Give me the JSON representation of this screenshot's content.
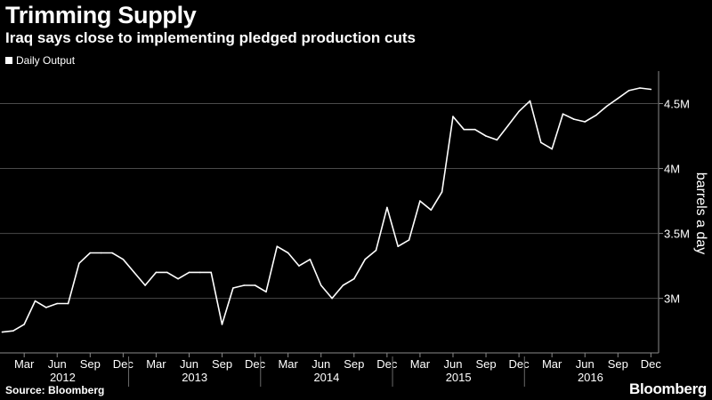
{
  "header": {
    "title": "Trimming Supply",
    "subtitle": "Iraq says close to implementing pledged production cuts"
  },
  "footer": {
    "source": "Source: Bloomberg",
    "brand": "Bloomberg"
  },
  "colors": {
    "background": "#000000",
    "line": "#ffffff",
    "grid": "#4a4a4a"
  },
  "chart_data": {
    "type": "line",
    "title": "Trimming Supply",
    "subtitle": "Iraq says close to implementing pledged production cuts",
    "ylabel": "barrels a day",
    "xlabel": "",
    "legend": {
      "placement": "top-left",
      "entries": [
        "Daily Output"
      ]
    },
    "grid": true,
    "ylim": [
      2.58,
      4.75
    ],
    "yticks": [
      {
        "value": 3.0,
        "label": "3M"
      },
      {
        "value": 3.5,
        "label": "3.5M"
      },
      {
        "value": 4.0,
        "label": "4M"
      },
      {
        "value": 4.5,
        "label": "4.5M"
      }
    ],
    "xlim": [
      "2012-01",
      "2016-12"
    ],
    "xticks": [
      {
        "date": "2012-03",
        "label": "Mar"
      },
      {
        "date": "2012-06",
        "label": "Jun"
      },
      {
        "date": "2012-09",
        "label": "Sep"
      },
      {
        "date": "2012-12",
        "label": "Dec"
      },
      {
        "date": "2013-03",
        "label": "Mar"
      },
      {
        "date": "2013-06",
        "label": "Jun"
      },
      {
        "date": "2013-09",
        "label": "Sep"
      },
      {
        "date": "2013-12",
        "label": "Dec"
      },
      {
        "date": "2014-03",
        "label": "Mar"
      },
      {
        "date": "2014-06",
        "label": "Jun"
      },
      {
        "date": "2014-09",
        "label": "Sep"
      },
      {
        "date": "2014-12",
        "label": "Dec"
      },
      {
        "date": "2015-03",
        "label": "Mar"
      },
      {
        "date": "2015-06",
        "label": "Jun"
      },
      {
        "date": "2015-09",
        "label": "Sep"
      },
      {
        "date": "2015-12",
        "label": "Dec"
      },
      {
        "date": "2016-03",
        "label": "Mar"
      },
      {
        "date": "2016-06",
        "label": "Jun"
      },
      {
        "date": "2016-09",
        "label": "Sep"
      },
      {
        "date": "2016-12",
        "label": "Dec"
      }
    ],
    "year_labels": [
      "2012",
      "2013",
      "2014",
      "2015",
      "2016"
    ],
    "series": [
      {
        "name": "Daily Output",
        "x": [
          "2012-01",
          "2012-02",
          "2012-03",
          "2012-04",
          "2012-05",
          "2012-06",
          "2012-07",
          "2012-08",
          "2012-09",
          "2012-10",
          "2012-11",
          "2012-12",
          "2013-01",
          "2013-02",
          "2013-03",
          "2013-04",
          "2013-05",
          "2013-06",
          "2013-07",
          "2013-08",
          "2013-09",
          "2013-10",
          "2013-11",
          "2013-12",
          "2014-01",
          "2014-02",
          "2014-03",
          "2014-04",
          "2014-05",
          "2014-06",
          "2014-07",
          "2014-08",
          "2014-09",
          "2014-10",
          "2014-11",
          "2014-12",
          "2015-01",
          "2015-02",
          "2015-03",
          "2015-04",
          "2015-05",
          "2015-06",
          "2015-07",
          "2015-08",
          "2015-09",
          "2015-10",
          "2015-11",
          "2015-12",
          "2016-01",
          "2016-02",
          "2016-03",
          "2016-04",
          "2016-05",
          "2016-06",
          "2016-07",
          "2016-08",
          "2016-09",
          "2016-10",
          "2016-11",
          "2016-12"
        ],
        "values": [
          2.74,
          2.75,
          2.8,
          2.98,
          2.93,
          2.96,
          2.96,
          3.27,
          3.35,
          3.35,
          3.35,
          3.3,
          3.2,
          3.1,
          3.2,
          3.2,
          3.15,
          3.2,
          3.2,
          3.2,
          2.8,
          3.08,
          3.1,
          3.1,
          3.05,
          3.4,
          3.35,
          3.25,
          3.3,
          3.1,
          3.0,
          3.1,
          3.15,
          3.3,
          3.37,
          3.7,
          3.4,
          3.45,
          3.75,
          3.68,
          3.82,
          4.4,
          4.3,
          4.3,
          4.25,
          4.22,
          4.33,
          4.44,
          4.52,
          4.2,
          4.15,
          4.42,
          4.38,
          4.36,
          4.41,
          4.48,
          4.54,
          4.6,
          4.62,
          4.61
        ]
      }
    ]
  }
}
